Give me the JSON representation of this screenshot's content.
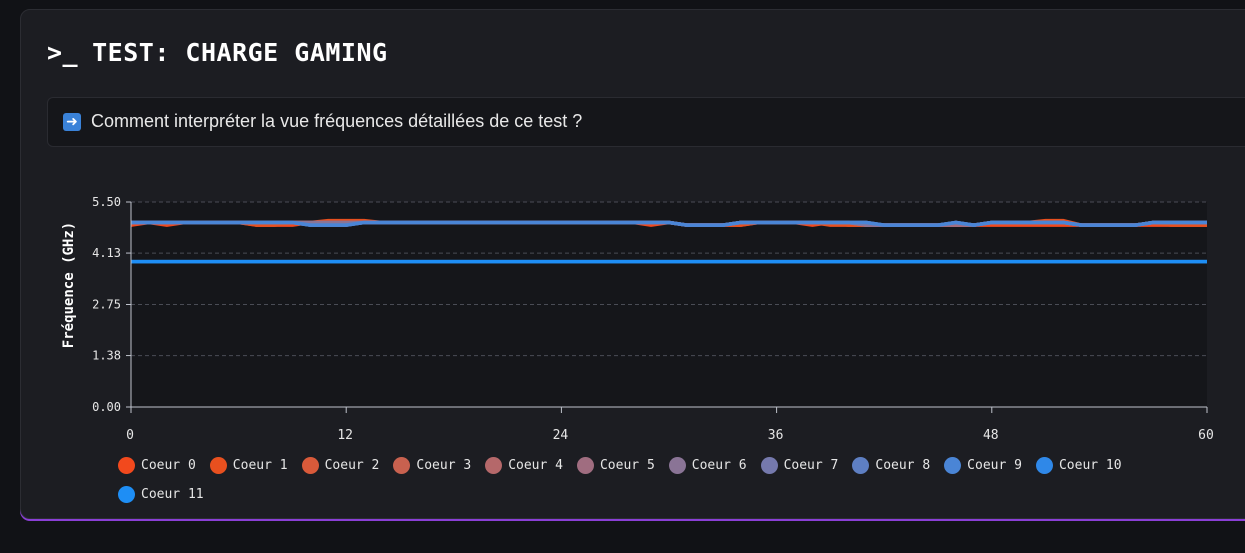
{
  "header": {
    "prompt": ">_",
    "title": "TEST: CHARGE GAMING"
  },
  "info": {
    "icon": "arrow-right-icon",
    "text": "Comment interpréter la vue fréquences détaillées de ce test ?"
  },
  "chart_data": {
    "type": "line",
    "ylabel": "Fréquence (GHz)",
    "xlabel": "",
    "xlim": [
      0,
      60
    ],
    "ylim": [
      0,
      5.5
    ],
    "x_ticks": [
      "0",
      "12",
      "24",
      "36",
      "48",
      "60"
    ],
    "y_ticks": [
      "0.00",
      "1.38",
      "2.75",
      "4.13",
      "5.50"
    ],
    "grid": "horizontal-dashed",
    "legend_position": "bottom",
    "x": [
      0,
      1,
      2,
      3,
      4,
      5,
      6,
      7,
      8,
      9,
      10,
      11,
      12,
      13,
      14,
      15,
      16,
      17,
      18,
      19,
      20,
      21,
      22,
      23,
      24,
      25,
      26,
      27,
      28,
      29,
      30,
      31,
      32,
      33,
      34,
      35,
      36,
      37,
      38,
      39,
      40,
      41,
      42,
      43,
      44,
      45,
      46,
      47,
      48,
      49,
      50,
      51,
      52,
      53,
      54,
      55,
      56,
      57,
      58,
      59,
      60
    ],
    "series": [
      {
        "name": "Coeur 0",
        "color": "#f2491d",
        "values": [
          4.88,
          4.95,
          4.88,
          4.95,
          4.95,
          4.95,
          4.95,
          4.88,
          4.88,
          4.88,
          4.95,
          4.95,
          4.95,
          4.95,
          4.95,
          4.95,
          4.95,
          4.95,
          4.95,
          4.95,
          4.95,
          4.95,
          4.95,
          4.95,
          4.95,
          4.95,
          4.95,
          4.95,
          4.95,
          4.88,
          4.95,
          4.88,
          4.88,
          4.88,
          4.88,
          4.95,
          4.95,
          4.95,
          4.88,
          4.95,
          4.88,
          4.88,
          4.88,
          4.88,
          4.88,
          4.88,
          4.88,
          4.88,
          4.88,
          4.88,
          4.88,
          4.88,
          4.88,
          4.88,
          4.88,
          4.88,
          4.88,
          4.88,
          4.88,
          4.88,
          4.88
        ]
      },
      {
        "name": "Coeur 1",
        "color": "#e8501f",
        "values": [
          4.95,
          4.95,
          4.95,
          4.95,
          4.95,
          4.95,
          4.95,
          4.88,
          4.88,
          4.95,
          4.95,
          5.0,
          5.0,
          5.0,
          4.95,
          4.95,
          4.95,
          4.95,
          4.95,
          4.95,
          4.95,
          4.95,
          4.95,
          4.95,
          4.95,
          4.95,
          4.95,
          4.95,
          4.95,
          4.95,
          4.95,
          4.88,
          4.88,
          4.88,
          4.88,
          4.95,
          4.95,
          4.95,
          4.95,
          4.88,
          4.88,
          4.88,
          4.88,
          4.88,
          4.88,
          4.88,
          4.88,
          4.88,
          4.95,
          4.95,
          4.95,
          5.0,
          5.0,
          4.88,
          4.88,
          4.88,
          4.88,
          4.95,
          4.88,
          4.88,
          4.88
        ]
      },
      {
        "name": "Coeur 2",
        "color": "#d95a3a",
        "values": [
          4.95,
          4.95,
          4.95,
          4.95,
          4.95,
          4.95,
          4.95,
          4.95,
          4.95,
          4.95,
          4.95,
          4.95,
          4.95,
          4.95,
          4.95,
          4.95,
          4.95,
          4.95,
          4.95,
          4.95,
          4.95,
          4.95,
          4.95,
          4.95,
          4.95,
          4.95,
          4.95,
          4.95,
          4.95,
          4.95,
          4.95,
          4.88,
          4.88,
          4.88,
          4.95,
          4.95,
          4.95,
          4.95,
          4.95,
          4.95,
          4.95,
          4.88,
          4.88,
          4.88,
          4.88,
          4.88,
          4.88,
          4.88,
          4.95,
          4.95,
          4.95,
          4.95,
          4.95,
          4.88,
          4.88,
          4.88,
          4.88,
          4.95,
          4.95,
          4.95,
          4.95
        ]
      },
      {
        "name": "Coeur 3",
        "color": "#c8614f",
        "values": [
          4.95,
          4.95,
          4.95,
          4.95,
          4.95,
          4.95,
          4.95,
          4.95,
          4.95,
          4.95,
          4.95,
          4.95,
          4.95,
          4.95,
          4.95,
          4.95,
          4.95,
          4.95,
          4.95,
          4.95,
          4.95,
          4.95,
          4.95,
          4.95,
          4.95,
          4.95,
          4.95,
          4.95,
          4.95,
          4.95,
          4.95,
          4.88,
          4.88,
          4.88,
          4.95,
          4.95,
          4.95,
          4.95,
          4.95,
          4.95,
          4.95,
          4.88,
          4.88,
          4.88,
          4.88,
          4.88,
          4.88,
          4.88,
          4.95,
          4.95,
          4.95,
          4.95,
          4.95,
          4.88,
          4.88,
          4.88,
          4.88,
          4.95,
          4.95,
          4.95,
          4.95
        ]
      },
      {
        "name": "Coeur 4",
        "color": "#b5686a",
        "values": [
          4.95,
          4.95,
          4.95,
          4.95,
          4.95,
          4.95,
          4.95,
          4.95,
          4.95,
          4.95,
          4.95,
          4.95,
          4.95,
          4.95,
          4.95,
          4.95,
          4.95,
          4.95,
          4.95,
          4.95,
          4.95,
          4.95,
          4.95,
          4.95,
          4.95,
          4.95,
          4.95,
          4.95,
          4.95,
          4.95,
          4.95,
          4.88,
          4.88,
          4.88,
          4.95,
          4.95,
          4.95,
          4.95,
          4.95,
          4.95,
          4.95,
          4.88,
          4.88,
          4.88,
          4.88,
          4.88,
          4.88,
          4.88,
          4.95,
          4.95,
          4.95,
          4.95,
          4.95,
          4.88,
          4.88,
          4.88,
          4.88,
          4.95,
          4.95,
          4.95,
          4.95
        ]
      },
      {
        "name": "Coeur 5",
        "color": "#a06d80",
        "values": [
          4.95,
          4.95,
          4.95,
          4.95,
          4.95,
          4.95,
          4.95,
          4.95,
          4.95,
          4.95,
          4.95,
          4.95,
          4.95,
          4.95,
          4.95,
          4.95,
          4.95,
          4.95,
          4.95,
          4.95,
          4.95,
          4.95,
          4.95,
          4.95,
          4.95,
          4.95,
          4.95,
          4.95,
          4.95,
          4.95,
          4.95,
          4.88,
          4.88,
          4.88,
          4.95,
          4.95,
          4.95,
          4.95,
          4.95,
          4.95,
          4.95,
          4.88,
          4.88,
          4.88,
          4.88,
          4.88,
          4.88,
          4.88,
          4.95,
          4.95,
          4.95,
          4.95,
          4.95,
          4.88,
          4.88,
          4.88,
          4.88,
          4.95,
          4.95,
          4.95,
          4.95
        ]
      },
      {
        "name": "Coeur 6",
        "color": "#8a7496",
        "values": [
          4.95,
          4.95,
          4.95,
          4.95,
          4.95,
          4.95,
          4.95,
          4.95,
          4.95,
          4.95,
          4.95,
          4.95,
          4.95,
          4.95,
          4.95,
          4.95,
          4.95,
          4.95,
          4.95,
          4.95,
          4.95,
          4.95,
          4.95,
          4.95,
          4.95,
          4.95,
          4.95,
          4.95,
          4.95,
          4.95,
          4.95,
          4.88,
          4.88,
          4.88,
          4.95,
          4.95,
          4.95,
          4.95,
          4.95,
          4.95,
          4.95,
          4.88,
          4.88,
          4.88,
          4.88,
          4.88,
          4.95,
          4.88,
          4.95,
          4.95,
          4.95,
          4.95,
          4.95,
          4.88,
          4.88,
          4.88,
          4.88,
          4.95,
          4.95,
          4.95,
          4.95
        ]
      },
      {
        "name": "Coeur 7",
        "color": "#7579ad",
        "values": [
          4.95,
          4.95,
          4.95,
          4.95,
          4.95,
          4.95,
          4.95,
          4.95,
          4.95,
          4.95,
          4.88,
          4.88,
          4.88,
          4.95,
          4.95,
          4.95,
          4.95,
          4.95,
          4.95,
          4.95,
          4.95,
          4.95,
          4.95,
          4.95,
          4.95,
          4.95,
          4.95,
          4.95,
          4.95,
          4.95,
          4.95,
          4.88,
          4.88,
          4.88,
          4.95,
          4.95,
          4.95,
          4.95,
          4.95,
          4.95,
          4.95,
          4.95,
          4.88,
          4.88,
          4.88,
          4.88,
          4.95,
          4.88,
          4.95,
          4.95,
          4.95,
          4.95,
          4.95,
          4.88,
          4.88,
          4.88,
          4.88,
          4.95,
          4.95,
          4.95,
          4.95
        ]
      },
      {
        "name": "Coeur 8",
        "color": "#5e7fc3",
        "values": [
          4.95,
          4.95,
          4.95,
          4.95,
          4.95,
          4.95,
          4.95,
          4.95,
          4.95,
          4.95,
          4.88,
          4.88,
          4.88,
          4.95,
          4.95,
          4.95,
          4.95,
          4.95,
          4.95,
          4.95,
          4.95,
          4.95,
          4.95,
          4.95,
          4.95,
          4.95,
          4.95,
          4.95,
          4.95,
          4.95,
          4.95,
          4.88,
          4.88,
          4.88,
          4.95,
          4.95,
          4.95,
          4.95,
          4.95,
          4.95,
          4.95,
          4.95,
          4.88,
          4.88,
          4.88,
          4.88,
          4.95,
          4.88,
          4.95,
          4.95,
          4.95,
          4.95,
          4.95,
          4.88,
          4.88,
          4.88,
          4.88,
          4.95,
          4.95,
          4.95,
          4.95
        ]
      },
      {
        "name": "Coeur 9",
        "color": "#4a85d6",
        "values": [
          4.95,
          4.95,
          4.95,
          4.95,
          4.95,
          4.95,
          4.95,
          4.95,
          4.95,
          4.95,
          4.88,
          4.88,
          4.88,
          4.95,
          4.95,
          4.95,
          4.95,
          4.95,
          4.95,
          4.95,
          4.95,
          4.95,
          4.95,
          4.95,
          4.95,
          4.95,
          4.95,
          4.95,
          4.95,
          4.95,
          4.95,
          4.88,
          4.88,
          4.88,
          4.95,
          4.95,
          4.95,
          4.95,
          4.95,
          4.95,
          4.95,
          4.95,
          4.88,
          4.88,
          4.88,
          4.88,
          4.95,
          4.88,
          4.95,
          4.95,
          4.95,
          4.95,
          4.95,
          4.88,
          4.88,
          4.88,
          4.88,
          4.95,
          4.95,
          4.95,
          4.95
        ]
      },
      {
        "name": "Coeur 10",
        "color": "#2f88e8",
        "values": [
          3.9,
          3.9,
          3.9,
          3.9,
          3.9,
          3.9,
          3.9,
          3.9,
          3.9,
          3.9,
          3.9,
          3.9,
          3.9,
          3.9,
          3.9,
          3.9,
          3.9,
          3.9,
          3.9,
          3.9,
          3.9,
          3.9,
          3.9,
          3.9,
          3.9,
          3.9,
          3.9,
          3.9,
          3.9,
          3.9,
          3.9,
          3.9,
          3.9,
          3.9,
          3.9,
          3.9,
          3.9,
          3.9,
          3.9,
          3.9,
          3.9,
          3.9,
          3.9,
          3.9,
          3.9,
          3.9,
          3.9,
          3.9,
          3.9,
          3.9,
          3.9,
          3.9,
          3.9,
          3.9,
          3.9,
          3.9,
          3.9,
          3.9,
          3.9,
          3.9,
          3.9
        ]
      },
      {
        "name": "Coeur 11",
        "color": "#1e8ef5",
        "values": [
          3.9,
          3.9,
          3.9,
          3.9,
          3.9,
          3.9,
          3.9,
          3.9,
          3.9,
          3.9,
          3.9,
          3.9,
          3.9,
          3.9,
          3.9,
          3.9,
          3.9,
          3.9,
          3.9,
          3.9,
          3.9,
          3.9,
          3.9,
          3.9,
          3.9,
          3.9,
          3.9,
          3.9,
          3.9,
          3.9,
          3.9,
          3.9,
          3.9,
          3.9,
          3.9,
          3.9,
          3.9,
          3.9,
          3.9,
          3.9,
          3.9,
          3.9,
          3.9,
          3.9,
          3.9,
          3.9,
          3.9,
          3.9,
          3.9,
          3.9,
          3.9,
          3.9,
          3.9,
          3.9,
          3.9,
          3.9,
          3.9,
          3.9,
          3.9,
          3.9,
          3.9
        ]
      }
    ]
  }
}
